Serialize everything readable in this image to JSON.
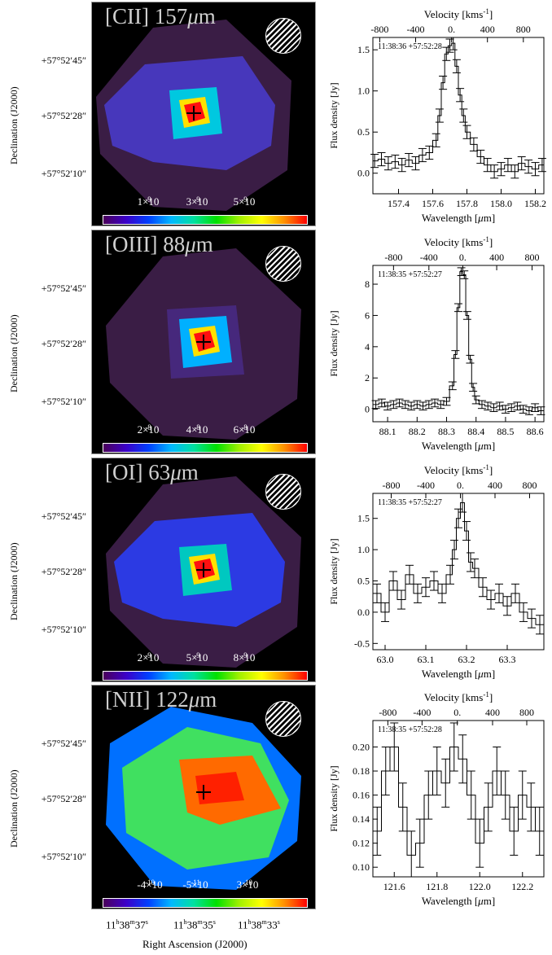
{
  "declination_axis_label": "Declination (J2000)",
  "dec_ticks": [
    "+57°52′45″",
    "+57°52′28″",
    "+57°52′10″"
  ],
  "ra_axis_label": "Right Ascension (J2000)",
  "ra_ticks": [
    "11h38m37s",
    "11h38m35s",
    "11h38m33s"
  ],
  "ra_ticks_parts": [
    {
      "h": "11",
      "m": "38",
      "s": "37"
    },
    {
      "h": "11",
      "m": "38",
      "s": "35"
    },
    {
      "h": "11",
      "m": "38",
      "s": "33"
    }
  ],
  "spectrum_top_axis": "Velocity [kms",
  "spectrum_top_axis_sup": "-1",
  "spectrum_top_axis_close": "]",
  "spectrum_ylabel": "Flux density [Jy]",
  "spectrum_xlabel": "Wavelength [",
  "spectrum_xlabel_mu": "μ",
  "spectrum_xlabel_unit": "m]",
  "velocity_ticks": [
    "-800",
    "-400",
    "0.",
    "400",
    "800"
  ],
  "panels": [
    {
      "map_title": "[CII] 157μm",
      "title_species": "[CII] 157",
      "title_mu": "μ",
      "title_unit": "m",
      "colorbar_ticks": [
        "1×10⁻⁹",
        "3×10⁻⁹",
        "5×10⁻⁹"
      ],
      "colorbar_tick_mant": [
        "1×10",
        "3×10",
        "5×10"
      ],
      "colorbar_tick_exp": [
        "-9",
        "-9",
        "-9"
      ],
      "coord_label": "11:38:36 +57:52:28",
      "colors": {
        "halo": "#3a1d45",
        "outer": "#4a3cd0",
        "mid": "#00c8e0",
        "core": "#ff1010"
      }
    },
    {
      "map_title": "[OIII] 88μm",
      "title_species": "[OIII] 88",
      "title_mu": "μ",
      "title_unit": "m",
      "colorbar_ticks": [
        "2×10⁻⁸",
        "4×10⁻⁸",
        "6×10⁻⁸"
      ],
      "colorbar_tick_mant": [
        "2×10",
        "4×10",
        "6×10"
      ],
      "colorbar_tick_exp": [
        "-8",
        "-8",
        "-8"
      ],
      "coord_label": "11:38:35 +57:52:27",
      "colors": {
        "halo": "#3a1d45",
        "outer": "#4a2c8a",
        "mid": "#00b0ff",
        "core": "#ff1010"
      }
    },
    {
      "map_title": "[OI] 63μm",
      "title_species": "[OI] 63",
      "title_mu": "μ",
      "title_unit": "m",
      "colorbar_ticks": [
        "2×10⁻⁹",
        "5×10⁻⁹",
        "8×10⁻⁹"
      ],
      "colorbar_tick_mant": [
        "2×10",
        "5×10",
        "8×10"
      ],
      "colorbar_tick_exp": [
        "-9",
        "-9",
        "-9"
      ],
      "coord_label": "11:38:35 +57:52:27",
      "colors": {
        "halo": "#3a1d45",
        "outer": "#2a40ff",
        "mid": "#00c8c0",
        "core": "#ff1010"
      }
    },
    {
      "map_title": "[NII] 122μm",
      "title_species": "[NII] 122",
      "title_mu": "μ",
      "title_unit": "m",
      "colorbar_ticks": [
        "-4×10⁻¹⁰",
        "-5×10⁻¹¹",
        "3×10⁻¹⁰"
      ],
      "colorbar_tick_mant": [
        "-4×10",
        "-5×10",
        "3×10"
      ],
      "colorbar_tick_exp": [
        "-10",
        "-11",
        "-10"
      ],
      "coord_label": "11:38:35 +57:52:28",
      "colors": {
        "halo": "#3a1d45",
        "outer": "#0070ff",
        "mid": "#40e060",
        "core": "#ff2000"
      }
    }
  ],
  "chart_data": [
    {
      "type": "line",
      "xlim": [
        157.25,
        158.25
      ],
      "ylim": [
        -0.25,
        1.65
      ],
      "x_ticks": [
        157.4,
        157.6,
        157.8,
        158.0,
        158.2
      ],
      "x_tick_labels": [
        "157.4",
        "157.6",
        "157.8",
        "158.0",
        "158.2"
      ],
      "y_ticks": [
        0.0,
        0.5,
        1.0,
        1.5
      ],
      "y_tick_labels": [
        "0.0",
        "0.5",
        "1.0",
        "1.5"
      ],
      "velocity_positions": [
        157.29,
        157.5,
        157.71,
        157.92,
        158.13
      ],
      "x": [
        157.26,
        157.3,
        157.34,
        157.38,
        157.42,
        157.46,
        157.5,
        157.54,
        157.58,
        157.62,
        157.64,
        157.66,
        157.68,
        157.7,
        157.72,
        157.74,
        157.76,
        157.78,
        157.8,
        157.84,
        157.88,
        157.92,
        157.96,
        158.0,
        158.04,
        158.08,
        158.12,
        158.16,
        158.2,
        158.24
      ],
      "y": [
        0.15,
        0.17,
        0.12,
        0.14,
        0.1,
        0.16,
        0.12,
        0.22,
        0.25,
        0.4,
        0.7,
        1.1,
        1.45,
        1.55,
        1.58,
        1.3,
        0.95,
        0.7,
        0.5,
        0.35,
        0.2,
        0.1,
        0.02,
        0.05,
        0.1,
        0.02,
        0.12,
        0.08,
        0.05,
        0.1
      ],
      "err": 0.08
    },
    {
      "type": "line",
      "xlim": [
        88.05,
        88.63
      ],
      "ylim": [
        -0.8,
        9.2
      ],
      "x_ticks": [
        88.1,
        88.2,
        88.3,
        88.4,
        88.5,
        88.6
      ],
      "x_tick_labels": [
        "88.1",
        "88.2",
        "88.3",
        "88.4",
        "88.5",
        "88.6"
      ],
      "y_ticks": [
        0,
        2,
        4,
        6,
        8
      ],
      "y_tick_labels": [
        "0",
        "2",
        "4",
        "6",
        "8"
      ],
      "velocity_positions": [
        88.12,
        88.24,
        88.355,
        88.47,
        88.59
      ],
      "x": [
        88.06,
        88.08,
        88.1,
        88.12,
        88.14,
        88.16,
        88.18,
        88.2,
        88.22,
        88.24,
        88.26,
        88.28,
        88.3,
        88.32,
        88.33,
        88.34,
        88.35,
        88.36,
        88.37,
        88.38,
        88.39,
        88.4,
        88.42,
        88.44,
        88.46,
        88.48,
        88.5,
        88.52,
        88.54,
        88.56,
        88.58,
        88.6,
        88.62
      ],
      "y": [
        0.3,
        0.4,
        0.2,
        0.3,
        0.4,
        0.3,
        0.2,
        0.3,
        0.2,
        0.3,
        0.4,
        0.3,
        0.5,
        1.5,
        3.5,
        6.5,
        8.8,
        8.6,
        6.0,
        3.2,
        1.4,
        0.6,
        0.3,
        0.2,
        0.1,
        0.2,
        0.0,
        0.1,
        0.2,
        0.0,
        -0.1,
        0.1,
        -0.1
      ],
      "err": 0.25
    },
    {
      "type": "line",
      "xlim": [
        62.97,
        63.39
      ],
      "ylim": [
        -0.6,
        1.9
      ],
      "x_ticks": [
        63.0,
        63.1,
        63.2,
        63.3
      ],
      "x_tick_labels": [
        "63.0",
        "63.1",
        "63.2",
        "63.3"
      ],
      "y_ticks": [
        -0.5,
        0.0,
        0.5,
        1.0,
        1.5
      ],
      "y_tick_labels": [
        "-0.5",
        "0.0",
        "0.5",
        "1.0",
        "1.5"
      ],
      "velocity_positions": [
        63.015,
        63.1,
        63.185,
        63.27,
        63.355
      ],
      "x": [
        62.98,
        63.0,
        63.02,
        63.04,
        63.06,
        63.08,
        63.1,
        63.12,
        63.14,
        63.16,
        63.17,
        63.18,
        63.19,
        63.2,
        63.21,
        63.22,
        63.24,
        63.26,
        63.28,
        63.3,
        63.32,
        63.34,
        63.36,
        63.38
      ],
      "y": [
        0.3,
        0.0,
        0.5,
        0.2,
        0.6,
        0.3,
        0.4,
        0.5,
        0.3,
        0.6,
        1.0,
        1.5,
        1.75,
        1.3,
        0.8,
        0.7,
        0.4,
        0.2,
        0.3,
        0.1,
        0.3,
        0.0,
        -0.1,
        -0.2
      ],
      "err": 0.15
    },
    {
      "type": "line",
      "xlim": [
        121.5,
        122.3
      ],
      "ylim": [
        0.092,
        0.222
      ],
      "x_ticks": [
        121.6,
        121.8,
        122.0,
        122.2
      ],
      "x_tick_labels": [
        "121.6",
        "121.8",
        "122.0",
        "122.2"
      ],
      "y_ticks": [
        0.1,
        0.12,
        0.14,
        0.16,
        0.18,
        0.2
      ],
      "y_tick_labels": [
        "0.10",
        "0.12",
        "0.14",
        "0.16",
        "0.18",
        "0.20"
      ],
      "velocity_positions": [
        121.57,
        121.73,
        121.895,
        122.06,
        122.22
      ],
      "x": [
        121.52,
        121.56,
        121.6,
        121.64,
        121.68,
        121.72,
        121.76,
        121.8,
        121.84,
        121.88,
        121.92,
        121.96,
        122.0,
        122.04,
        122.08,
        122.12,
        122.16,
        122.2,
        122.24,
        122.28
      ],
      "y": [
        0.13,
        0.18,
        0.2,
        0.15,
        0.11,
        0.12,
        0.16,
        0.18,
        0.17,
        0.2,
        0.19,
        0.16,
        0.12,
        0.15,
        0.18,
        0.16,
        0.13,
        0.16,
        0.15,
        0.13
      ],
      "err": 0.02
    }
  ]
}
